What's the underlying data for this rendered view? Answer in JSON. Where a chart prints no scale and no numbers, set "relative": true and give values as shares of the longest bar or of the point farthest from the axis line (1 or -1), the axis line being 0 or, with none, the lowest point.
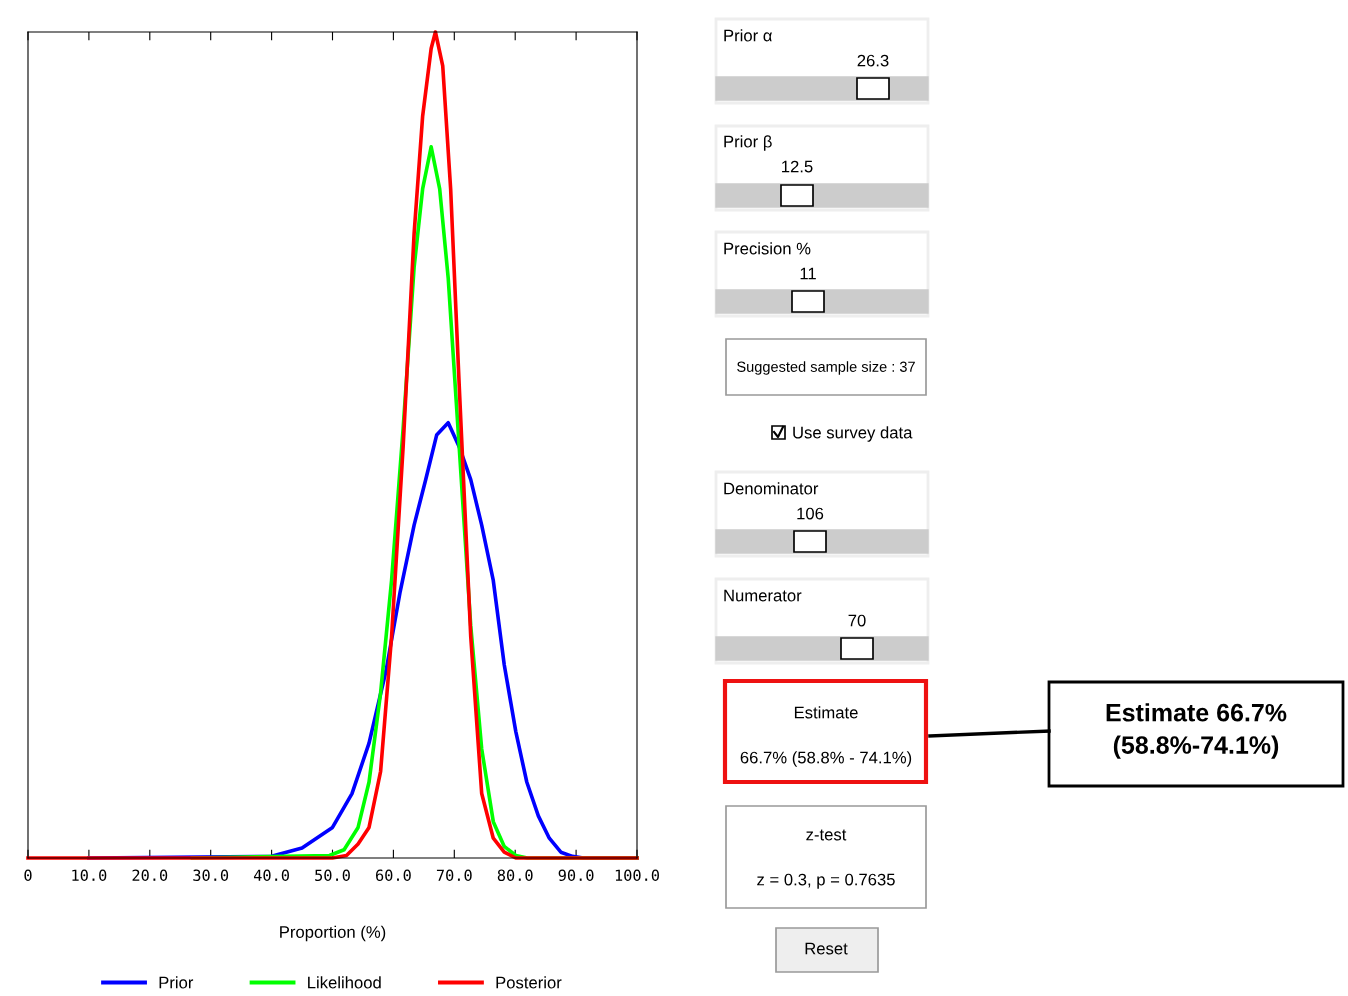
{
  "chart_data": [
    {
      "type": "line",
      "relative": true,
      "xlabel": "Proportion (%)",
      "xlim": [
        0,
        100
      ],
      "xticks": [
        {
          "value": 0,
          "label": "0"
        },
        {
          "value": 10,
          "label": "10.0"
        },
        {
          "value": 20,
          "label": "20.0"
        },
        {
          "value": 30,
          "label": "30.0"
        },
        {
          "value": 40,
          "label": "40.0"
        },
        {
          "value": 50,
          "label": "50.0"
        },
        {
          "value": 60,
          "label": "60.0"
        },
        {
          "value": 70,
          "label": "70.0"
        },
        {
          "value": 80,
          "label": "80.0"
        },
        {
          "value": 90,
          "label": "90.0"
        },
        {
          "value": 100,
          "label": "100.0"
        }
      ],
      "legend": "bottom",
      "grid": false,
      "marker": "none",
      "line_style": "solid",
      "series": [
        {
          "name": "Prior",
          "color": "#0000ff",
          "x": [
            10,
            40,
            45,
            50,
            53.2,
            56,
            58.8,
            61.1,
            63.4,
            65.3,
            67.1,
            69,
            70.8,
            72.7,
            74.5,
            76.4,
            78.2,
            80.1,
            81.9,
            83.8,
            85.6,
            87.5,
            89.4,
            91.2,
            100
          ],
          "values": [
            0,
            0.002,
            0.012,
            0.037,
            0.078,
            0.139,
            0.227,
            0.322,
            0.403,
            0.458,
            0.512,
            0.527,
            0.498,
            0.458,
            0.403,
            0.336,
            0.234,
            0.153,
            0.092,
            0.051,
            0.024,
            0.007,
            0.002,
            0,
            0
          ]
        },
        {
          "name": "Likelihood",
          "color": "#00ff00",
          "x": [
            27,
            49.5,
            51.9,
            54.2,
            56,
            57.9,
            59.7,
            61.6,
            63.4,
            64.8,
            66.2,
            67.6,
            69,
            70.8,
            72.7,
            74.5,
            76.4,
            78.2,
            80.1,
            82,
            100
          ],
          "values": [
            0,
            0.003,
            0.01,
            0.037,
            0.092,
            0.2,
            0.336,
            0.52,
            0.715,
            0.81,
            0.861,
            0.81,
            0.702,
            0.498,
            0.281,
            0.132,
            0.044,
            0.014,
            0.003,
            0,
            0
          ]
        },
        {
          "name": "Posterior",
          "color": "#ff0000",
          "x": [
            0,
            50,
            52.3,
            54.2,
            56,
            57.9,
            59.7,
            61.6,
            63.4,
            64.8,
            66.2,
            66.9,
            68.1,
            69.4,
            70.8,
            72.7,
            74.5,
            76.4,
            78.2,
            80.1,
            100
          ],
          "values": [
            0,
            0,
            0.003,
            0.017,
            0.037,
            0.105,
            0.268,
            0.498,
            0.756,
            0.898,
            0.98,
            1,
            0.959,
            0.81,
            0.573,
            0.268,
            0.078,
            0.024,
            0.007,
            0,
            0
          ]
        }
      ]
    },
    {
      "type": "other",
      "annotations": [
        "Prior α",
        "26.3",
        "Prior β",
        "12.5",
        "Precision %",
        "11",
        "Suggested sample size : 37",
        "Use survey data",
        "Denominator",
        "106",
        "Numerator",
        "70",
        "Estimate",
        "66.7% (58.8% - 74.1%)",
        "z-test",
        "z = 0.3, p = 0.7635",
        "Reset",
        "Estimate 66.7%\n(58.8%-74.1%)"
      ]
    }
  ]
}
